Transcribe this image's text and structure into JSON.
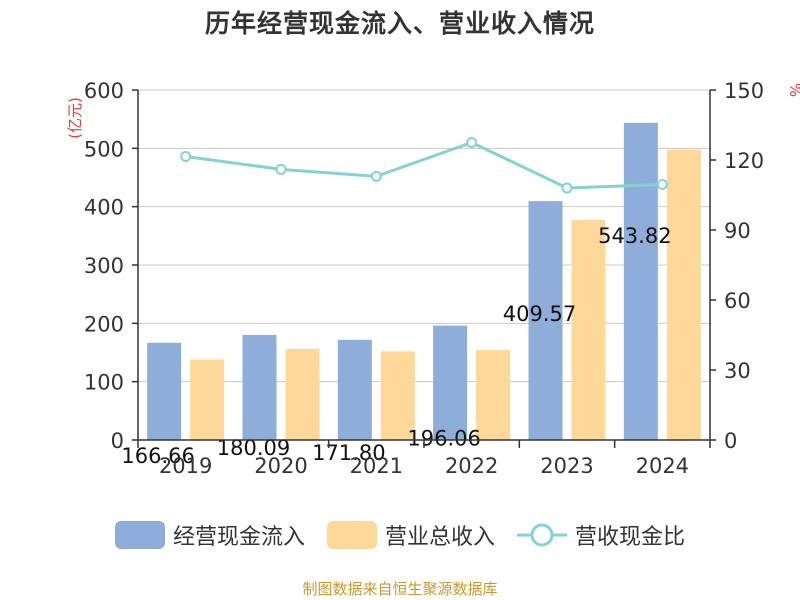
{
  "chart_data": {
    "type": "bar",
    "title": "历年经营现金流入、营业收入情况",
    "categories": [
      "2019",
      "2020",
      "2021",
      "2022",
      "2023",
      "2024"
    ],
    "series": [
      {
        "name": "经营现金流入",
        "type": "bar",
        "axis": "left",
        "color": "#8eadd9",
        "values": [
          166.66,
          180.09,
          171.8,
          196.06,
          409.57,
          543.82
        ]
      },
      {
        "name": "营业总收入",
        "type": "bar",
        "axis": "left",
        "color": "#fdd898",
        "values": [
          138,
          156,
          152,
          154,
          377,
          498
        ]
      },
      {
        "name": "营收现金比",
        "type": "line",
        "axis": "right",
        "color": "#85d2d4",
        "values": [
          121.5,
          116,
          113,
          127.5,
          108,
          109.5
        ]
      }
    ],
    "data_labels": [
      "166.66",
      "180.09",
      "171.80",
      "196.06",
      "409.57",
      "543.82"
    ],
    "yaxis_left": {
      "label": "(亿元)",
      "min": 0,
      "max": 600,
      "ticks": [
        0,
        100,
        200,
        300,
        400,
        500,
        600
      ]
    },
    "yaxis_right": {
      "label": "%",
      "min": 0,
      "max": 150,
      "ticks": [
        0,
        30,
        60,
        90,
        120,
        150
      ]
    },
    "grid": true,
    "legend_position": "bottom"
  },
  "source": "制图数据来自恒生聚源数据库",
  "colors": {
    "axis_label_red": "#e03a3a",
    "line": "#85d2d4"
  }
}
